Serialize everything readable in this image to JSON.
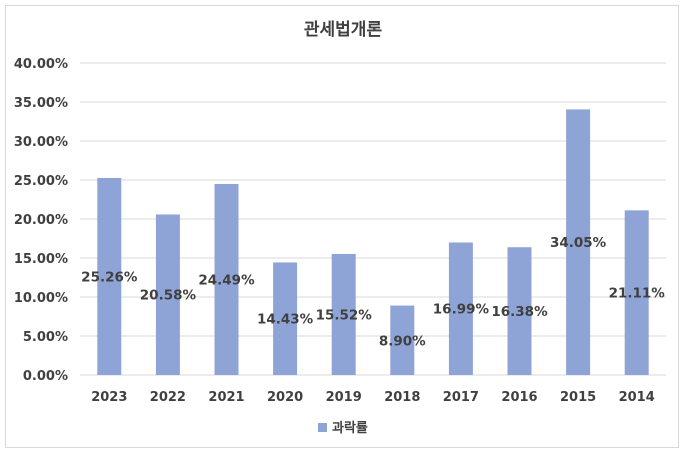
{
  "chart_data": {
    "type": "bar",
    "title": "관세법개론",
    "categories": [
      "2023",
      "2022",
      "2021",
      "2020",
      "2019",
      "2018",
      "2017",
      "2016",
      "2015",
      "2014"
    ],
    "series": [
      {
        "name": "과락률",
        "values": [
          25.26,
          20.58,
          24.49,
          14.43,
          15.52,
          8.9,
          16.99,
          16.38,
          34.05,
          21.11
        ],
        "labels": [
          "25.26%",
          "20.58%",
          "24.49%",
          "14.43%",
          "15.52%",
          "8.90%",
          "16.99%",
          "16.38%",
          "34.05%",
          "21.11%"
        ],
        "color": "#8ea3d6"
      }
    ],
    "ylim": [
      0,
      40
    ],
    "yticks": [
      "0.00%",
      "5.00%",
      "10.00%",
      "15.00%",
      "20.00%",
      "25.00%",
      "30.00%",
      "35.00%",
      "40.00%"
    ],
    "ytick_values": [
      0,
      5,
      10,
      15,
      20,
      25,
      30,
      35,
      40
    ],
    "xlabel": "",
    "ylabel": "",
    "grid": true,
    "legend": "bottom",
    "gridline_color": "#d9d9d9"
  }
}
